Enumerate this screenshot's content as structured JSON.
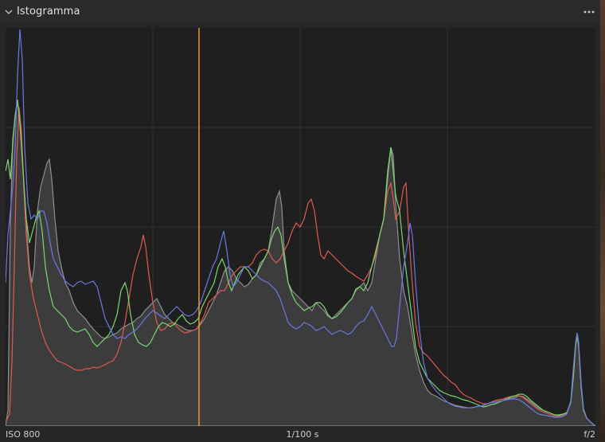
{
  "panel": {
    "title": "Istogramma",
    "collapse_icon": "chevron-down-icon",
    "menu_icon": "more-horizontal-icon"
  },
  "histogram": {
    "marker_color": "#f0a030",
    "marker_position": 0.32,
    "channel_colors": {
      "red": "#e05a50",
      "green": "#7ad870",
      "blue": "#6a78e0",
      "luminance": "#9a9a9a"
    }
  },
  "footer": {
    "iso": "ISO 800",
    "shutter": "1/100 s",
    "aperture": "f/2"
  }
}
